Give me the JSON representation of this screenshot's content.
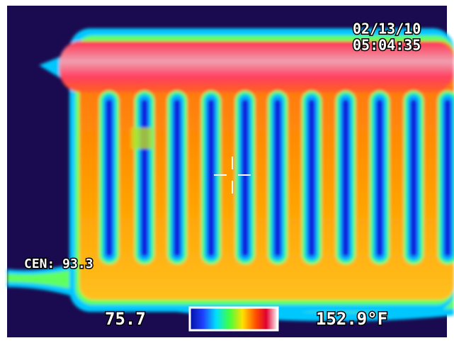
{
  "timestamp": {
    "date": "02/13/10",
    "time": "05:04:35"
  },
  "center_readout": "CEN: 93.3",
  "scale": {
    "min_label": "75.7",
    "max_label": "152.9°F"
  }
}
